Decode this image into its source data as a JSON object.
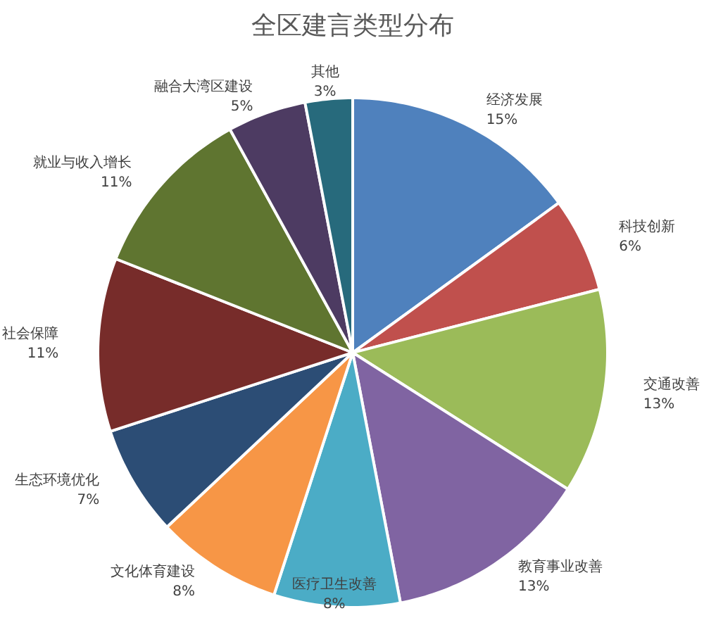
{
  "chart_data": {
    "type": "pie",
    "title": "全区建言类型分布",
    "categories": [
      "经济发展",
      "科技创新",
      "交通改善",
      "教育事业改善",
      "医疗卫生改善",
      "文化体育建设",
      "生态环境优化",
      "社会保障",
      "就业与收入增长",
      "融合大湾区建设",
      "其他"
    ],
    "values": [
      15,
      6,
      13,
      13,
      8,
      8,
      7,
      11,
      11,
      5,
      3
    ],
    "value_labels": [
      "15%",
      "6%",
      "13%",
      "13%",
      "8%",
      "8%",
      "7%",
      "11%",
      "11%",
      "5%",
      "3%"
    ],
    "colors": [
      "#4f81bd",
      "#c0504d",
      "#9bbb59",
      "#8064a2",
      "#4bacc6",
      "#f79646",
      "#2c4d75",
      "#772c2a",
      "#5f7530",
      "#4d3b62",
      "#276a7c"
    ]
  }
}
